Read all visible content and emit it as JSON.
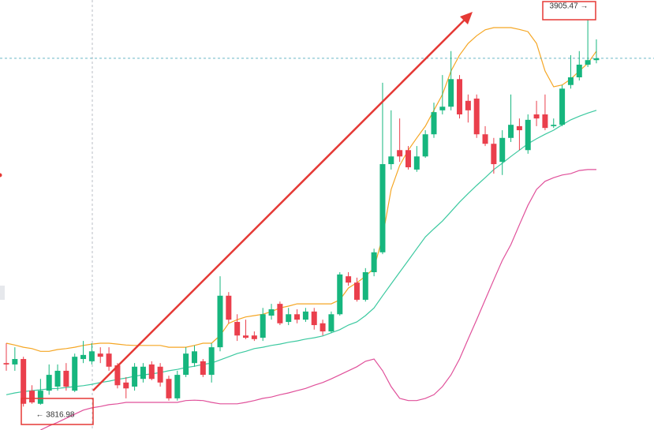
{
  "chart_data": {
    "type": "candlestick",
    "ylim": [
      3811.8,
      3906.9
    ],
    "up_color": "#16b67e",
    "down_color": "#ea3f4c",
    "open": [
      3826.6,
      3826.3,
      3827.5,
      3820.5,
      3817.6,
      3820.5,
      3821.4,
      3824.9,
      3820.5,
      3827.5,
      3827.0,
      3828.7,
      3828.7,
      3826.1,
      3822.3,
      3821.4,
      3823.1,
      3826.3,
      3825.8,
      3823.1,
      3818.8,
      3824.0,
      3826.6,
      3827.0,
      3824.0,
      3830.1,
      3841.5,
      3835.7,
      3832.7,
      3832.7,
      3832.2,
      3837.1,
      3839.7,
      3835.7,
      3837.4,
      3836.2,
      3838.0,
      3835.4,
      3833.6,
      3837.4,
      3845.8,
      3844.4,
      3840.6,
      3846.7,
      3851.1,
      3870.6,
      3873.7,
      3873.7,
      3869.4,
      3872.3,
      3877.2,
      3882.5,
      3883.3,
      3889.4,
      3884.6,
      3885.1,
      3877.2,
      3875.1,
      3871.1,
      3876.4,
      3879.0,
      3873.7,
      3881.6,
      3881.6,
      3879.0,
      3879.3,
      3888.1,
      3889.8,
      3892.6,
      3893.6
    ],
    "high": [
      3831.0,
      3830.1,
      3828.0,
      3821.7,
      3823.1,
      3826.3,
      3826.3,
      3826.6,
      3828.7,
      3831.5,
      3831.0,
      3830.1,
      3830.1,
      3826.6,
      3823.5,
      3826.6,
      3826.6,
      3827.0,
      3826.6,
      3823.8,
      3824.9,
      3830.1,
      3830.5,
      3827.5,
      3831.0,
      3845.8,
      3842.3,
      3837.4,
      3836.2,
      3833.6,
      3838.8,
      3839.7,
      3840.2,
      3838.8,
      3838.5,
      3838.8,
      3838.8,
      3836.2,
      3838.0,
      3846.7,
      3846.7,
      3845.5,
      3847.6,
      3851.9,
      3888.6,
      3882.5,
      3880.7,
      3874.6,
      3874.6,
      3878.1,
      3884.2,
      3890.3,
      3895.6,
      3890.3,
      3886.0,
      3886.0,
      3879.0,
      3876.4,
      3878.1,
      3886.0,
      3880.7,
      3881.6,
      3884.6,
      3886.0,
      3880.7,
      3888.1,
      3894.7,
      3895.6,
      3905.47,
      3898.2
    ],
    "low": [
      3824.9,
      3824.9,
      3816.98,
      3817.6,
      3817.4,
      3819.6,
      3820.5,
      3820.5,
      3820.2,
      3826.6,
      3826.3,
      3826.6,
      3824.9,
      3821.0,
      3818.8,
      3820.5,
      3822.3,
      3822.8,
      3821.4,
      3818.3,
      3818.3,
      3823.5,
      3825.8,
      3823.5,
      3822.3,
      3829.2,
      3835.4,
      3831.5,
      3831.9,
      3831.5,
      3831.5,
      3836.2,
      3835.0,
      3835.0,
      3835.4,
      3835.7,
      3834.0,
      3832.7,
      3833.3,
      3837.1,
      3843.7,
      3840.2,
      3840.2,
      3845.8,
      3850.7,
      3869.4,
      3871.1,
      3869.4,
      3868.9,
      3872.0,
      3876.4,
      3881.6,
      3882.5,
      3880.7,
      3879.8,
      3876.4,
      3874.6,
      3868.5,
      3868.2,
      3875.5,
      3873.7,
      3872.9,
      3879.0,
      3878.1,
      3878.6,
      3879.0,
      3887.3,
      3889.1,
      3892.1,
      3892.9
    ],
    "close": [
      3826.3,
      3827.5,
      3817.6,
      3817.9,
      3820.5,
      3824.0,
      3824.9,
      3821.4,
      3828.0,
      3828.4,
      3829.2,
      3828.0,
      3825.8,
      3821.7,
      3821.0,
      3825.8,
      3825.8,
      3823.1,
      3822.3,
      3818.8,
      3824.0,
      3828.7,
      3829.2,
      3824.0,
      3830.1,
      3841.5,
      3836.2,
      3832.7,
      3832.2,
      3831.9,
      3837.4,
      3838.5,
      3835.4,
      3837.4,
      3836.2,
      3838.0,
      3835.0,
      3833.6,
      3837.4,
      3846.2,
      3844.4,
      3840.6,
      3846.7,
      3851.1,
      3870.6,
      3872.3,
      3872.3,
      3869.9,
      3872.3,
      3877.2,
      3882.1,
      3883.3,
      3889.4,
      3881.6,
      3882.5,
      3877.2,
      3875.1,
      3870.6,
      3876.4,
      3879.3,
      3878.1,
      3880.4,
      3880.7,
      3878.6,
      3879.3,
      3887.3,
      3889.8,
      3892.6,
      3893.6,
      3894.0
    ],
    "lines": [
      {
        "color": "#f5a623",
        "values": [
          3831.0,
          3830.6,
          3830.1,
          3829.8,
          3829.2,
          3829.2,
          3829.6,
          3829.8,
          3830.1,
          3830.5,
          3830.8,
          3831.0,
          3831.0,
          3830.8,
          3830.6,
          3830.5,
          3830.5,
          3830.5,
          3830.5,
          3830.1,
          3830.1,
          3830.1,
          3830.5,
          3831.0,
          3831.0,
          3832.7,
          3835.4,
          3836.2,
          3836.8,
          3837.1,
          3837.4,
          3838.0,
          3838.8,
          3839.2,
          3839.7,
          3839.7,
          3839.7,
          3839.7,
          3839.7,
          3840.6,
          3843.2,
          3844.4,
          3845.8,
          3847.6,
          3854.5,
          3865.0,
          3870.3,
          3873.7,
          3876.4,
          3879.0,
          3882.5,
          3886.0,
          3891.2,
          3894.7,
          3897.3,
          3899.0,
          3900.3,
          3900.8,
          3900.8,
          3900.8,
          3900.4,
          3899.9,
          3897.3,
          3891.2,
          3887.7,
          3888.1,
          3889.4,
          3891.2,
          3892.9,
          3895.6
        ]
      },
      {
        "color": "#3cc9a0",
        "values": [
          3819.6,
          3820.0,
          3820.3,
          3820.5,
          3820.7,
          3820.9,
          3821.0,
          3821.2,
          3821.4,
          3821.6,
          3821.9,
          3822.3,
          3822.6,
          3823.0,
          3823.3,
          3823.7,
          3824.0,
          3824.2,
          3824.5,
          3824.9,
          3825.2,
          3825.6,
          3825.9,
          3826.3,
          3826.6,
          3827.3,
          3828.0,
          3828.7,
          3829.2,
          3829.8,
          3830.1,
          3830.5,
          3830.8,
          3831.2,
          3831.5,
          3831.9,
          3832.2,
          3832.6,
          3833.3,
          3834.0,
          3835.0,
          3835.7,
          3837.1,
          3838.8,
          3841.5,
          3844.1,
          3846.7,
          3849.3,
          3851.9,
          3854.5,
          3856.3,
          3858.0,
          3860.1,
          3862.2,
          3864.1,
          3865.9,
          3867.6,
          3869.4,
          3870.8,
          3872.3,
          3873.7,
          3875.1,
          3876.2,
          3877.2,
          3878.1,
          3879.3,
          3880.4,
          3881.2,
          3881.9,
          3882.5
        ]
      },
      {
        "color": "#e0509a",
        "values": [
          null,
          null,
          null,
          null,
          3811.8,
          3812.7,
          3813.5,
          3814.4,
          3815.3,
          3816.2,
          3816.7,
          3817.0,
          3817.4,
          3817.6,
          3817.9,
          3817.9,
          3817.9,
          3817.9,
          3817.9,
          3817.9,
          3817.9,
          3818.3,
          3818.4,
          3818.3,
          3817.9,
          3817.6,
          3817.6,
          3817.6,
          3817.9,
          3818.3,
          3818.8,
          3819.1,
          3819.6,
          3820.0,
          3820.5,
          3821.0,
          3821.7,
          3822.3,
          3823.1,
          3824.0,
          3824.9,
          3825.8,
          3827.0,
          3827.5,
          3824.9,
          3821.4,
          3818.8,
          3818.3,
          3818.3,
          3818.8,
          3819.6,
          3821.4,
          3824.0,
          3827.5,
          3831.9,
          3836.2,
          3840.6,
          3845.0,
          3849.3,
          3852.8,
          3857.2,
          3861.5,
          3865.0,
          3866.8,
          3867.6,
          3868.2,
          3868.5,
          3869.2,
          3869.4,
          3869.4
        ]
      }
    ],
    "annotations": [
      "3905.47 →",
      "← 3816.98"
    ]
  }
}
